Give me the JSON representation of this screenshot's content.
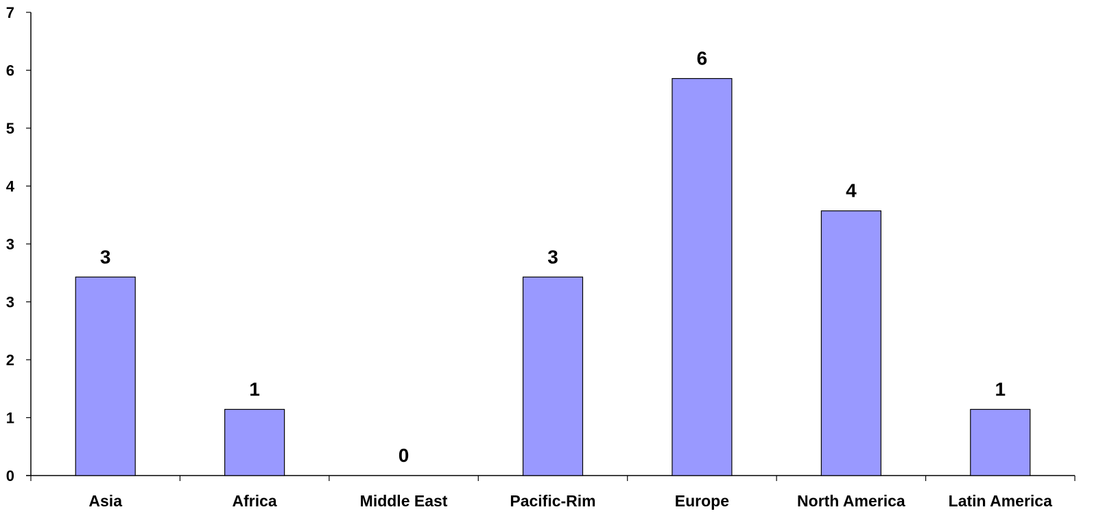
{
  "chart_data": {
    "type": "bar",
    "categories": [
      "Asia",
      "Africa",
      "Middle East",
      "Pacific-Rim",
      "Europe",
      "North America",
      "Latin America"
    ],
    "values": [
      3,
      1,
      0,
      3,
      6,
      4,
      1
    ],
    "y_tick_labels": [
      "0",
      "1",
      "2",
      "3",
      "3",
      "4",
      "5",
      "6",
      "7"
    ],
    "title": "",
    "xlabel": "",
    "ylabel": "",
    "ylim": [
      0,
      7
    ],
    "grid": false,
    "legend": "none",
    "bar_color": "#9999FF",
    "bar_edge_color": "#000000"
  }
}
